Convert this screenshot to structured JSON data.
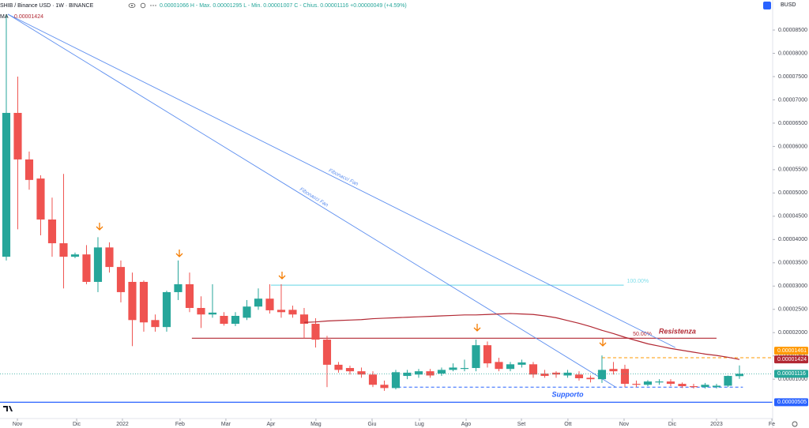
{
  "chart_data": {
    "type": "candlestick",
    "title": "SHIB / Binance USD · 1W · BINANCE",
    "subtitle": "0.00001066 H - Max. 0.00001295 L - Min. 0.00001007 C - Chius. 0.00001116 +0.00000049 (+4.59%)",
    "currency": "BUSD",
    "up_color": "#26a69a",
    "down_color": "#ef5350",
    "open": [
      3.63e-05,
      6.72e-05,
      5.72e-05,
      5.31e-05,
      4.43e-05,
      3.92e-05,
      3.63e-05,
      3.68e-05,
      3.09e-05,
      3.83e-05,
      3.41e-05,
      3.09e-05,
      3.09e-05,
      2.27e-05,
      2.12e-05,
      2.87e-05,
      3.04e-05,
      2.53e-05,
      2.39e-05,
      2.36e-05,
      2.19e-05,
      2.32e-05,
      2.56e-05,
      2.73e-05,
      2.49e-05,
      2.49e-05,
      2.39e-05,
      2.19e-05,
      1.85e-05,
      1.31e-05,
      1.24e-05,
      1.17e-05,
      1.1e-05,
      8.8e-06,
      8.1e-06,
      1.07e-05,
      1.1e-05,
      1.17e-05,
      1.12e-05,
      1.2e-05,
      1.22e-05,
      1.24e-05,
      1.73e-05,
      1.37e-05,
      1.22e-05,
      1.31e-05,
      1.32e-05,
      1.12e-05,
      1.14e-05,
      1.08e-05,
      1.1e-05,
      1.03e-05,
      1e-05,
      1.22e-05,
      1.22e-05,
      9e-06,
      8.8e-06,
      9.3e-06,
      9.5e-06,
      9e-06,
      8.5e-06,
      8.3e-06,
      8.3e-06,
      8.6e-06,
      1.066e-05
    ],
    "high": [
      8.84e-05,
      7.5e-05,
      5.89e-05,
      5.38e-05,
      4.9e-05,
      5.41e-05,
      3.72e-05,
      3.88e-05,
      4.05e-05,
      3.94e-05,
      3.55e-05,
      3.29e-05,
      3.12e-05,
      2.39e-05,
      2.9e-05,
      3.55e-05,
      3.29e-05,
      2.78e-05,
      3.04e-05,
      2.44e-05,
      2.44e-05,
      2.7e-05,
      2.95e-05,
      3.04e-05,
      3.04e-05,
      2.58e-05,
      2.53e-05,
      2.31e-05,
      1.93e-05,
      1.37e-05,
      1.29e-05,
      1.25e-05,
      1.17e-05,
      9.7e-06,
      1.2e-05,
      1.2e-05,
      1.22e-05,
      1.22e-05,
      1.25e-05,
      1.34e-05,
      1.42e-05,
      1.85e-05,
      1.81e-05,
      1.46e-05,
      1.37e-05,
      1.42e-05,
      1.37e-05,
      1.2e-05,
      1.17e-05,
      1.2e-05,
      1.17e-05,
      1.08e-05,
      1.51e-05,
      1.37e-05,
      1.31e-05,
      9.7e-06,
      9.8e-06,
      1e-05,
      1e-05,
      9.3e-06,
      9e-06,
      9.2e-06,
      9e-06,
      1.08e-05,
      1.295e-05
    ],
    "low": [
      3.55e-05,
      4.22e-05,
      5.07e-05,
      4.09e-05,
      3.63e-05,
      2.95e-05,
      3.6e-05,
      3.04e-05,
      2.87e-05,
      3.29e-05,
      2.65e-05,
      1.71e-05,
      2.02e-05,
      2.02e-05,
      2.02e-05,
      2.7e-05,
      2.44e-05,
      2.1e-05,
      2.32e-05,
      2.15e-05,
      2.14e-05,
      2.27e-05,
      2.49e-05,
      2.41e-05,
      2.32e-05,
      2.32e-05,
      1.88e-05,
      1.68e-05,
      8.3e-06,
      1.14e-05,
      1.1e-05,
      1.03e-05,
      8.3e-06,
      7.5e-06,
      7.8e-06,
      1e-05,
      1.03e-05,
      1.03e-05,
      1.07e-05,
      1.17e-05,
      1.17e-05,
      1.17e-05,
      1.25e-05,
      1.17e-05,
      1.17e-05,
      1.25e-05,
      1.03e-05,
      1.03e-05,
      1.03e-05,
      1.03e-05,
      9.7e-06,
      9.3e-06,
      9.2e-06,
      1.1e-05,
      8.3e-06,
      8.3e-06,
      8.5e-06,
      8.8e-06,
      8.5e-06,
      8.1e-06,
      8e-06,
      8e-06,
      8e-06,
      8.3e-06,
      1.007e-05
    ],
    "close": [
      6.72e-05,
      5.72e-05,
      5.28e-05,
      4.43e-05,
      3.92e-05,
      3.63e-05,
      3.68e-05,
      3.09e-05,
      3.83e-05,
      3.41e-05,
      2.87e-05,
      2.27e-05,
      2.22e-05,
      2.12e-05,
      2.87e-05,
      3.04e-05,
      2.53e-05,
      2.39e-05,
      2.43e-05,
      2.19e-05,
      2.36e-05,
      2.56e-05,
      2.73e-05,
      2.48e-05,
      2.44e-05,
      2.39e-05,
      2.19e-05,
      1.85e-05,
      1.31e-05,
      1.2e-05,
      1.17e-05,
      1.1e-05,
      8.8e-06,
      8.1e-06,
      1.15e-05,
      1.14e-05,
      1.17e-05,
      1.08e-05,
      1.2e-05,
      1.25e-05,
      1.24e-05,
      1.73e-05,
      1.34e-05,
      1.22e-05,
      1.32e-05,
      1.36e-05,
      1.1e-05,
      1.07e-05,
      1.1e-05,
      1.14e-05,
      1.02e-05,
      1e-05,
      1.2e-05,
      1.17e-05,
      9e-06,
      8.8e-06,
      9.5e-06,
      9.5e-06,
      9e-06,
      8.5e-06,
      8.3e-06,
      8.8e-06,
      8.6e-06,
      1.07e-05,
      1.116e-05
    ],
    "close_last_label": "0.00001116",
    "ma": {
      "name": "MA",
      "color": "#b22833",
      "last_label": "0.00001424",
      "values": [
        null,
        null,
        null,
        null,
        null,
        null,
        null,
        null,
        null,
        null,
        null,
        null,
        null,
        null,
        null,
        null,
        null,
        null,
        null,
        null,
        null,
        null,
        null,
        null,
        null,
        null,
        2.22e-05,
        2.23e-05,
        2.25e-05,
        2.26e-05,
        2.27e-05,
        2.28e-05,
        2.3e-05,
        2.31e-05,
        2.32e-05,
        2.33e-05,
        2.34e-05,
        2.35e-05,
        2.36e-05,
        2.37e-05,
        2.38e-05,
        2.38e-05,
        2.39e-05,
        2.4e-05,
        2.41e-05,
        2.4e-05,
        2.39e-05,
        2.36e-05,
        2.32e-05,
        2.26e-05,
        2.2e-05,
        2.13e-05,
        2.05e-05,
        1.98e-05,
        1.9e-05,
        1.83e-05,
        1.76e-05,
        1.71e-05,
        1.66e-05,
        1.62e-05,
        1.58e-05,
        1.54e-05,
        1.51e-05,
        1.47e-05,
        1.424e-05
      ]
    },
    "fans": [
      {
        "label": "Fibonacci Fan",
        "color": "#5b8def",
        "x": [
          0.14,
          58.4
        ],
        "y": [
          8.84e-05,
          1.68e-05
        ]
      },
      {
        "label": "Fibonacci Fan",
        "color": "#5b8def",
        "x": [
          0.14,
          53.2
        ],
        "y": [
          8.84e-05,
          8.3e-06
        ]
      }
    ],
    "levels": [
      {
        "label": "Resistenza",
        "value": 1.88e-05,
        "x": [
          16.2,
          62
        ],
        "color": "#b22833",
        "style": "solid",
        "label_position": "above-end"
      },
      {
        "label": "Supporto",
        "value": 8.3e-06,
        "x": [
          33.7,
          64.3
        ],
        "color": "#2962ff",
        "style": "dashed",
        "label_position": "below-middle"
      },
      {
        "label": "100.00%",
        "value": 3.02e-05,
        "x": [
          23.1,
          53.9
        ],
        "color": "#80deea",
        "style": "solid",
        "label_position": "after-end"
      },
      {
        "value": 1.461e-05,
        "x": [
          52,
          66.9
        ],
        "color": "#ff9800",
        "style": "dashed",
        "badge": "0.00001461"
      },
      {
        "value": 5.05e-06,
        "x": [
          -0.55,
          66.9
        ],
        "color": "#2962ff",
        "style": "solid",
        "badge": "0.00000505"
      }
    ],
    "notes": [
      {
        "text": "50.00%",
        "x": 54.7,
        "y": 1.97e-05,
        "color": "#b22833"
      }
    ],
    "xlim": [
      -0.55,
      66.9
    ],
    "ylim": [
      1.55e-06,
      9.145e-05
    ],
    "xticks": [
      {
        "value": 0.97,
        "label": "Nov"
      },
      {
        "value": 6.14,
        "label": "Dic"
      },
      {
        "value": 10.14,
        "label": "2022"
      },
      {
        "value": 15.17,
        "label": "Feb"
      },
      {
        "value": 19.17,
        "label": "Mar"
      },
      {
        "value": 23.1,
        "label": "Apr"
      },
      {
        "value": 27.03,
        "label": "Mag"
      },
      {
        "value": 31.93,
        "label": "Giu"
      },
      {
        "value": 36.07,
        "label": "Lug"
      },
      {
        "value": 40.14,
        "label": "Ago"
      },
      {
        "value": 44.97,
        "label": "Set"
      },
      {
        "value": 49.03,
        "label": "Ott"
      },
      {
        "value": 53.93,
        "label": "Nov"
      },
      {
        "value": 58.14,
        "label": "Dic"
      },
      {
        "value": 62,
        "label": "2023"
      },
      {
        "value": 66.83,
        "label": "Fe"
      }
    ],
    "yticks": [
      {
        "value": 1e-05,
        "label": "0.00001000"
      },
      {
        "value": 1.5e-05,
        "label": "0.00001500"
      },
      {
        "value": 2e-05,
        "label": "0.00002000"
      },
      {
        "value": 2.5e-05,
        "label": "0.00002500"
      },
      {
        "value": 3e-05,
        "label": "0.00003000"
      },
      {
        "value": 3.5e-05,
        "label": "0.00003500"
      },
      {
        "value": 4e-05,
        "label": "0.00004000"
      },
      {
        "value": 4.5e-05,
        "label": "0.00004500"
      },
      {
        "value": 5e-05,
        "label": "0.00005000"
      },
      {
        "value": 5.5e-05,
        "label": "0.00005500"
      },
      {
        "value": 6e-05,
        "label": "0.00006000"
      },
      {
        "value": 6.5e-05,
        "label": "0.00006500"
      },
      {
        "value": 7e-05,
        "label": "0.00007000"
      },
      {
        "value": 7.5e-05,
        "label": "0.00007500"
      },
      {
        "value": 8e-05,
        "label": "0.00008000"
      },
      {
        "value": 8.5e-05,
        "label": "0.00008500"
      }
    ]
  }
}
